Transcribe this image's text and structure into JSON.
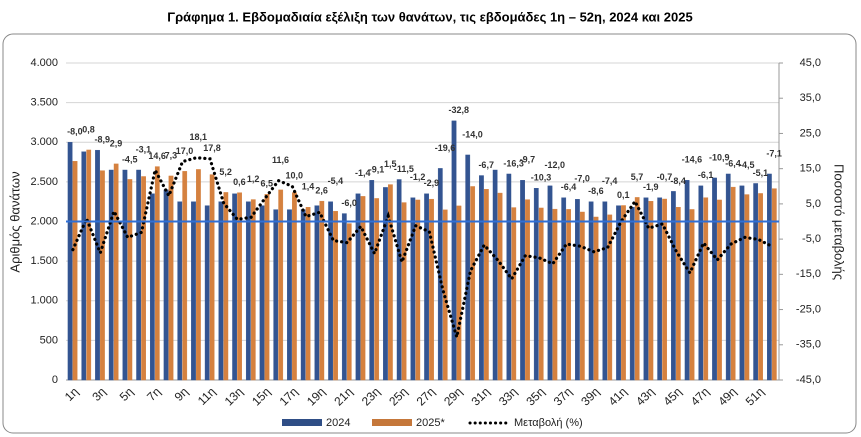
{
  "chart_data": {
    "type": "bar-line",
    "title": "Γράφημα 1.  Εβδομαδιαία εξέλιξη των θανάτων, τις εβδομάδες 1η – 52η, 2024 και 2025",
    "y_label": "Αριθμός θανάτων",
    "y2_label": "Ποσοστό μεταβολής",
    "categories": [
      "1η",
      null,
      "3η",
      null,
      "5η",
      null,
      "7η",
      null,
      "9η",
      null,
      "11η",
      null,
      "13η",
      null,
      "15η",
      null,
      "17η",
      null,
      "19η",
      null,
      "21η",
      null,
      "23η",
      null,
      "25η",
      null,
      "27η",
      null,
      "29η",
      null,
      "31η",
      null,
      "33η",
      null,
      "35η",
      null,
      "37η",
      null,
      "39η",
      null,
      "41η",
      null,
      "43η",
      null,
      "45η",
      null,
      "47η",
      null,
      "49η",
      null,
      "51η",
      null
    ],
    "series": [
      {
        "name": "2024",
        "type": "bar",
        "color": "#2f4e86",
        "values": [
          3000,
          2880,
          2900,
          2650,
          2650,
          2650,
          2350,
          2400,
          2250,
          2250,
          2200,
          2250,
          2350,
          2250,
          2200,
          2150,
          2150,
          2150,
          2200,
          2250,
          2100,
          2350,
          2520,
          2430,
          2530,
          2300,
          2350,
          2670,
          3270,
          2840,
          2580,
          2650,
          2600,
          2520,
          2420,
          2450,
          2300,
          2280,
          2250,
          2250,
          2200,
          2180,
          2300,
          2300,
          2380,
          2520,
          2450,
          2550,
          2600,
          2450,
          2480,
          2600
        ]
      },
      {
        "name": "2025*",
        "type": "bar",
        "color": "#c5773a",
        "values": [
          2760,
          2903,
          2642,
          2727,
          2531,
          2568,
          2693,
          2575,
          2633,
          2657,
          2592,
          2367,
          2364,
          2277,
          2343,
          2399,
          2365,
          2180,
          2257,
          2129,
          1974,
          2317,
          2291,
          2466,
          2239,
          2272,
          2282,
          2147,
          2197,
          2442,
          2407,
          2359,
          2176,
          2276,
          2171,
          2156,
          2153,
          2120,
          2057,
          2084,
          2202,
          2304,
          2256,
          2284,
          2180,
          2152,
          2301,
          2272,
          2434,
          2340,
          2354,
          2415
        ]
      },
      {
        "name": "Μεταβολή (%)",
        "type": "line",
        "axis": "y2",
        "color": "#000000",
        "values": [
          -8.0,
          0.8,
          -8.9,
          2.9,
          -4.5,
          -3.1,
          14.6,
          7.3,
          17.0,
          18.1,
          17.8,
          5.2,
          0.6,
          1.2,
          6.5,
          11.6,
          10.0,
          1.4,
          2.6,
          -5.4,
          -6.0,
          -1.4,
          -9.1,
          1.5,
          -11.5,
          -1.2,
          -2.9,
          -19.6,
          -32.8,
          -14.0,
          -6.7,
          -11.0,
          -16.3,
          -9.7,
          -10.3,
          -12.0,
          -6.4,
          -7.0,
          -8.6,
          -7.4,
          0.1,
          5.7,
          -1.9,
          -0.7,
          -8.4,
          -14.6,
          -6.1,
          -10.9,
          -6.4,
          -4.5,
          -5.1,
          -7.1
        ],
        "value_labels": [
          "-8,0",
          "0,8",
          "-8,9",
          "2,9",
          "-4,5",
          "-3,1",
          "14,6",
          "7,3",
          "17,0",
          "18,1",
          "17,8",
          "5,2",
          "0,6",
          "1,2",
          "6,5",
          "11,6",
          "10,0",
          "1,4",
          "2,6",
          "-5,4",
          "-6,0",
          "-1,4",
          "-9,1",
          "1,5",
          "-11,5",
          "-1,2",
          "-2,9",
          "-19,6",
          "-32,8",
          "-14,0",
          "-6,7",
          null,
          "-16,3",
          "-9,7",
          "-10,3",
          "-12,0",
          "-6,4",
          "-7,0",
          "-8,6",
          "-7,4",
          "0,1",
          "5,7",
          "-1,9",
          "-0,7",
          "-8,4",
          "-14,6",
          "-6,1",
          "-10,9",
          "-6,4",
          "-4,5",
          "-5,1",
          "-7,1"
        ]
      }
    ],
    "ylim": [
      0,
      4000
    ],
    "yticks": [
      0,
      500,
      {
        "value": 1000,
        "label": "1.000"
      },
      {
        "value": 1500,
        "label": "1.500"
      },
      {
        "value": 2000,
        "label": "2.000"
      },
      {
        "value": 2500,
        "label": "2.500"
      },
      {
        "value": 3000,
        "label": "3.000"
      },
      {
        "value": 3500,
        "label": "3.500"
      },
      {
        "value": 4000,
        "label": "4.000"
      }
    ],
    "y2lim": [
      -45,
      45
    ],
    "y2ticks": [
      {
        "value": -45,
        "label": "-45,0"
      },
      {
        "value": -35,
        "label": "-35,0"
      },
      {
        "value": -25,
        "label": "-25,0"
      },
      {
        "value": -15,
        "label": "-15,0"
      },
      {
        "value": -5,
        "label": "-5,0"
      },
      {
        "value": 5,
        "label": "5,0"
      },
      {
        "value": 15,
        "label": "15,0"
      },
      {
        "value": 25,
        "label": "25,0"
      },
      {
        "value": 35,
        "label": "35,0"
      },
      {
        "value": 45,
        "label": "45,0"
      }
    ],
    "grid": true,
    "legend": "bottom"
  }
}
